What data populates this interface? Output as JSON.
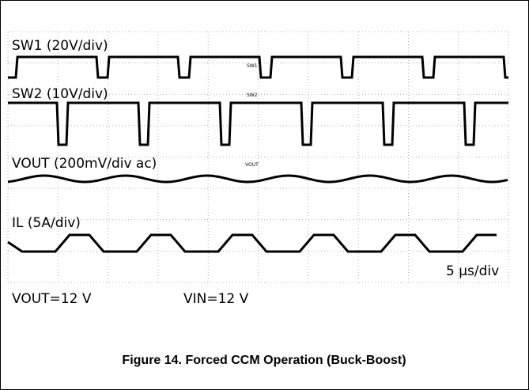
{
  "channels": [
    {
      "label": "SW1 (20V/div)",
      "tag": "SW1"
    },
    {
      "label": "SW2 (10V/div)",
      "tag": "SW2"
    },
    {
      "label": "VOUT (200mV/div ac)",
      "tag": "VOUT"
    },
    {
      "label": "IL (5A/div)"
    }
  ],
  "timebase": "5 µs/div",
  "conditions": [
    "VOUT=12 V",
    "VIN=12 V"
  ],
  "caption": "Figure 14. Forced CCM Operation (Buck-Boost)"
}
